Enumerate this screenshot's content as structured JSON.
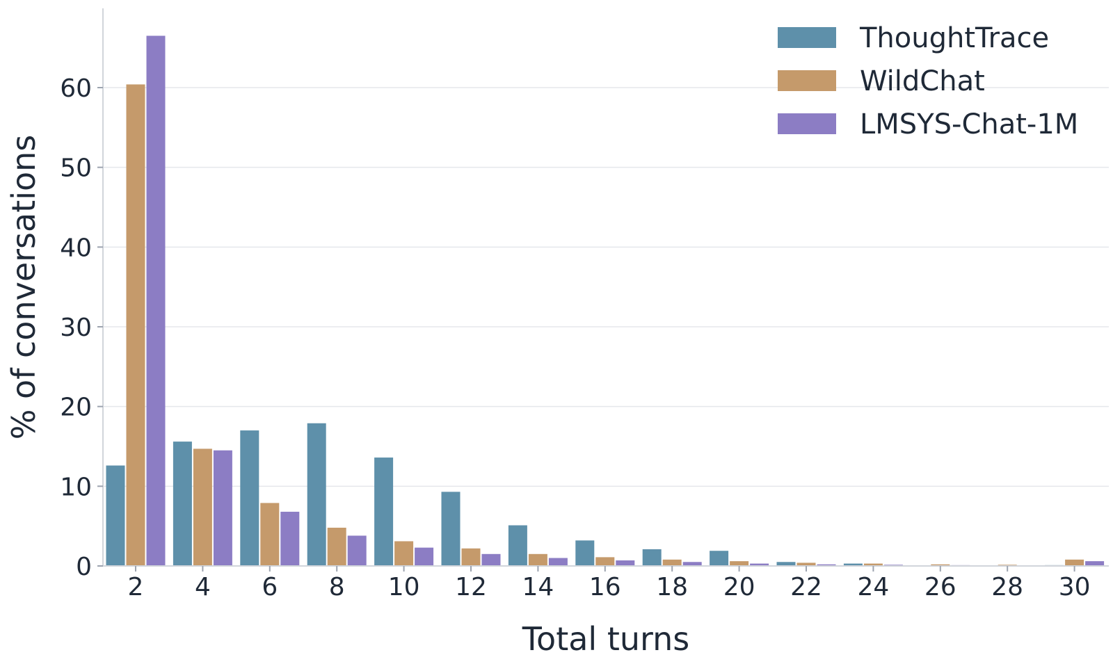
{
  "chart_data": {
    "type": "bar",
    "categories": [
      "2",
      "4",
      "6",
      "8",
      "10",
      "12",
      "14",
      "16",
      "18",
      "20",
      "22",
      "24",
      "26",
      "28",
      "30"
    ],
    "series": [
      {
        "name": "ThoughtTrace",
        "color": "#5e90aa",
        "values": [
          12.6,
          15.6,
          17.0,
          17.9,
          13.6,
          9.3,
          5.1,
          3.2,
          2.1,
          1.9,
          0.5,
          0.3,
          0.05,
          0.05,
          0.1
        ]
      },
      {
        "name": "WildChat",
        "color": "#c59a6b",
        "values": [
          60.4,
          14.7,
          7.9,
          4.8,
          3.1,
          2.2,
          1.5,
          1.1,
          0.8,
          0.6,
          0.4,
          0.3,
          0.2,
          0.15,
          0.8
        ]
      },
      {
        "name": "LMSYS-Chat-1M",
        "color": "#8c7dc4",
        "values": [
          66.5,
          14.5,
          6.8,
          3.8,
          2.3,
          1.5,
          1.0,
          0.7,
          0.5,
          0.3,
          0.2,
          0.15,
          0.1,
          0.05,
          0.6
        ]
      }
    ],
    "title": "",
    "xlabel": "Total turns",
    "ylabel": "% of conversations",
    "ylim": [
      0,
      70
    ],
    "yticks": [
      "0",
      "10",
      "20",
      "30",
      "40",
      "50",
      "60"
    ],
    "grid": true,
    "legend_position": "top-right"
  }
}
